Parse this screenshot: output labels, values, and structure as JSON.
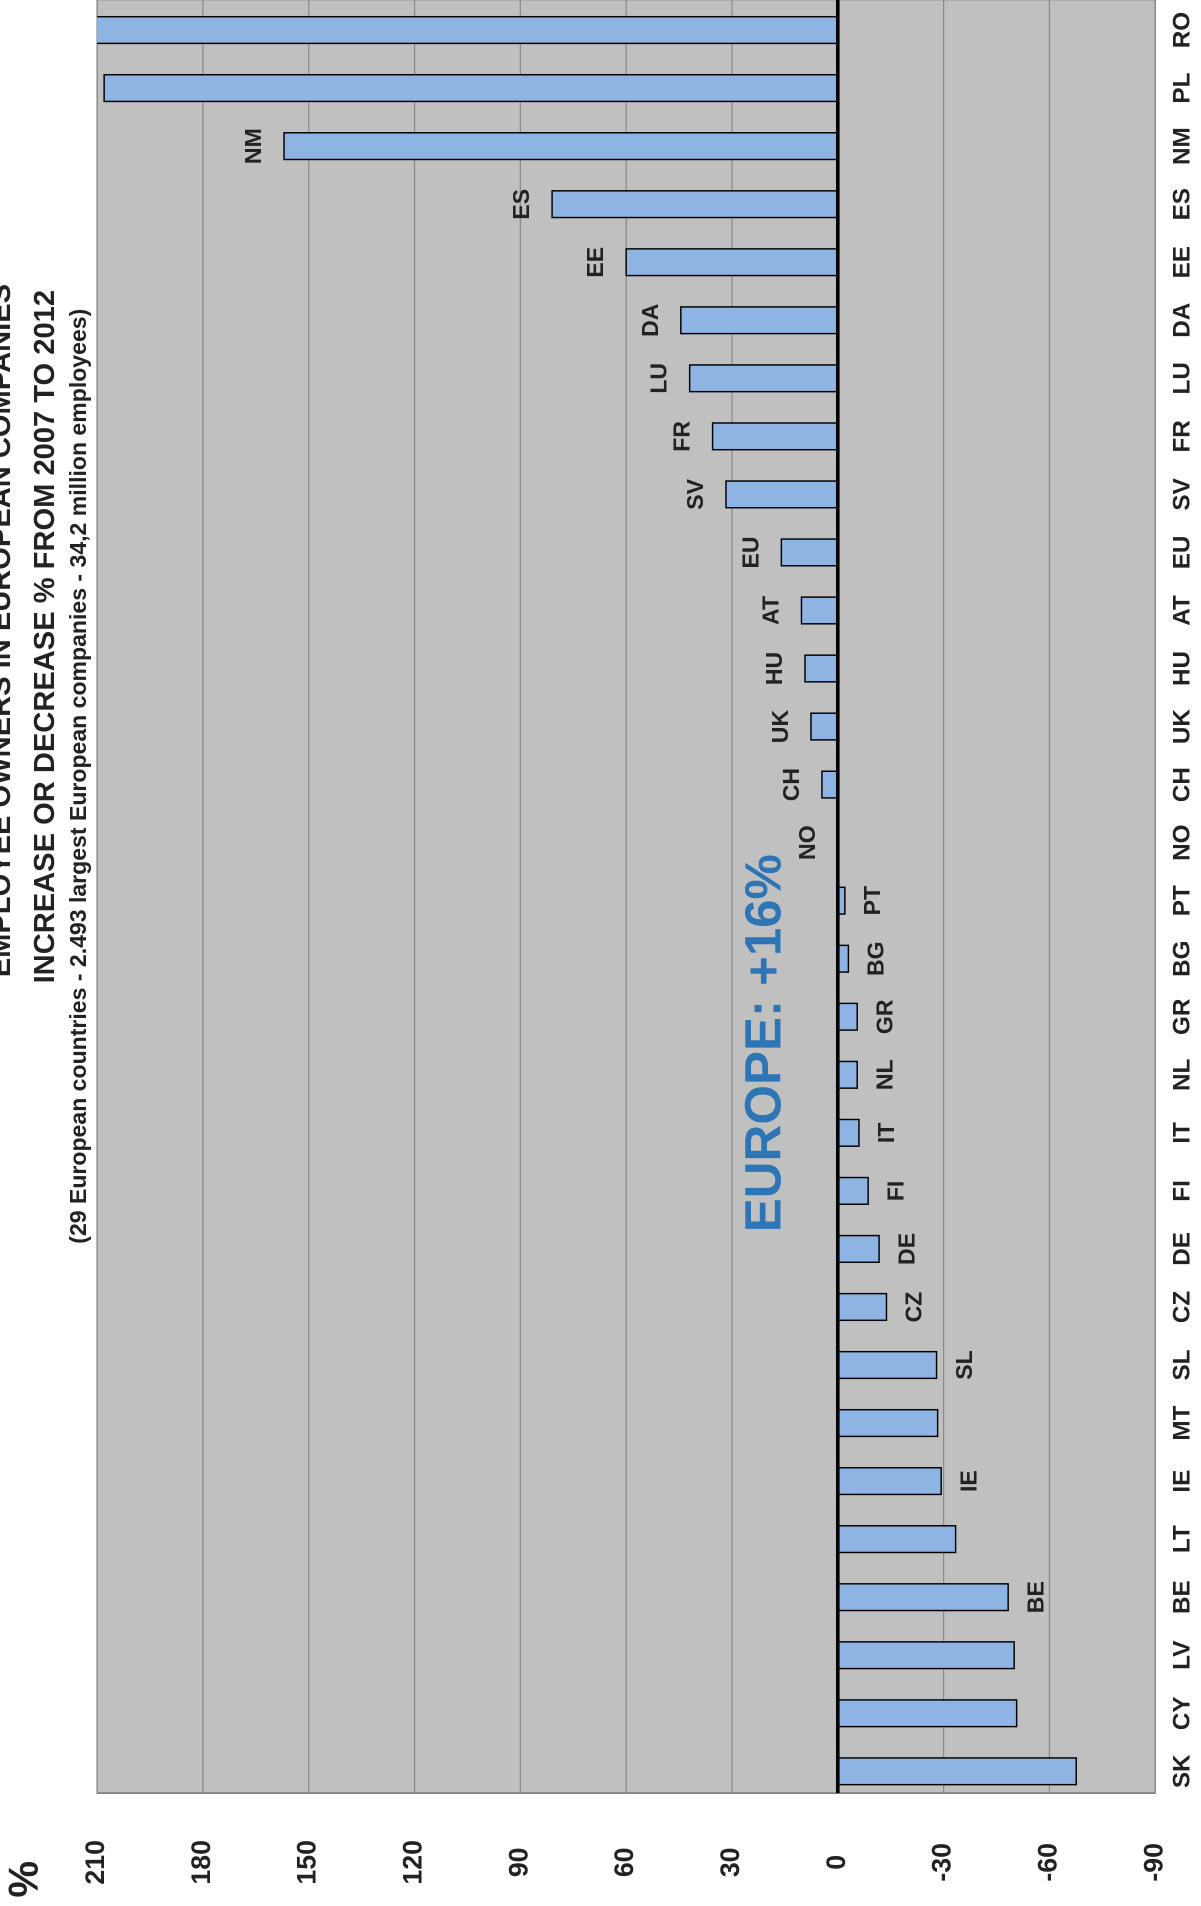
{
  "chart_data": {
    "type": "bar",
    "title": "EMPLOYEE OWNERS IN EUROPEAN COMPANIES",
    "subtitle": "INCREASE OR DECREASE % FROM 2007 TO 2012",
    "note": "(29 European countries - 2.493 largest European companies - 34,2 million employees)",
    "annotation": "EUROPE: +16%",
    "y_label": "%",
    "categories": [
      "SK",
      "CY",
      "LV",
      "BE",
      "LT",
      "IE",
      "MT",
      "SL",
      "CZ",
      "DE",
      "FI",
      "IT",
      "NL",
      "GR",
      "BG",
      "PT",
      "NO",
      "CH",
      "UK",
      "HU",
      "AT",
      "EU",
      "SV",
      "FR",
      "LU",
      "DA",
      "EE",
      "ES",
      "NM",
      "PL",
      "RO"
    ],
    "bar_labels": [
      null,
      null,
      null,
      "BE",
      null,
      "IE",
      null,
      "SL",
      "CZ",
      "DE",
      "FI",
      "IT",
      "NL",
      "GR",
      "BG",
      "PT",
      "NO",
      "CH",
      "UK",
      "HU",
      "AT",
      "EU",
      "SV",
      "FR",
      "LU",
      "DA",
      "EE",
      "ES",
      "NM",
      null,
      null
    ],
    "values": [
      -67.6,
      -50.7,
      -50,
      -48.3,
      -33.4,
      -29.3,
      -28.3,
      -28,
      -13.8,
      -11.7,
      -8.6,
      -6,
      -5.5,
      -5.5,
      -3,
      -2,
      0,
      4.5,
      7.6,
      9.3,
      10.3,
      16,
      31.7,
      35.5,
      42,
      44.5,
      60,
      81,
      157,
      208,
      220
    ],
    "color": "#8db4e2",
    "ylim": [
      210,
      -90
    ],
    "yticks": [
      210,
      180,
      150,
      120,
      90,
      60,
      30,
      0,
      -30,
      -60,
      -90
    ],
    "grid": true
  }
}
